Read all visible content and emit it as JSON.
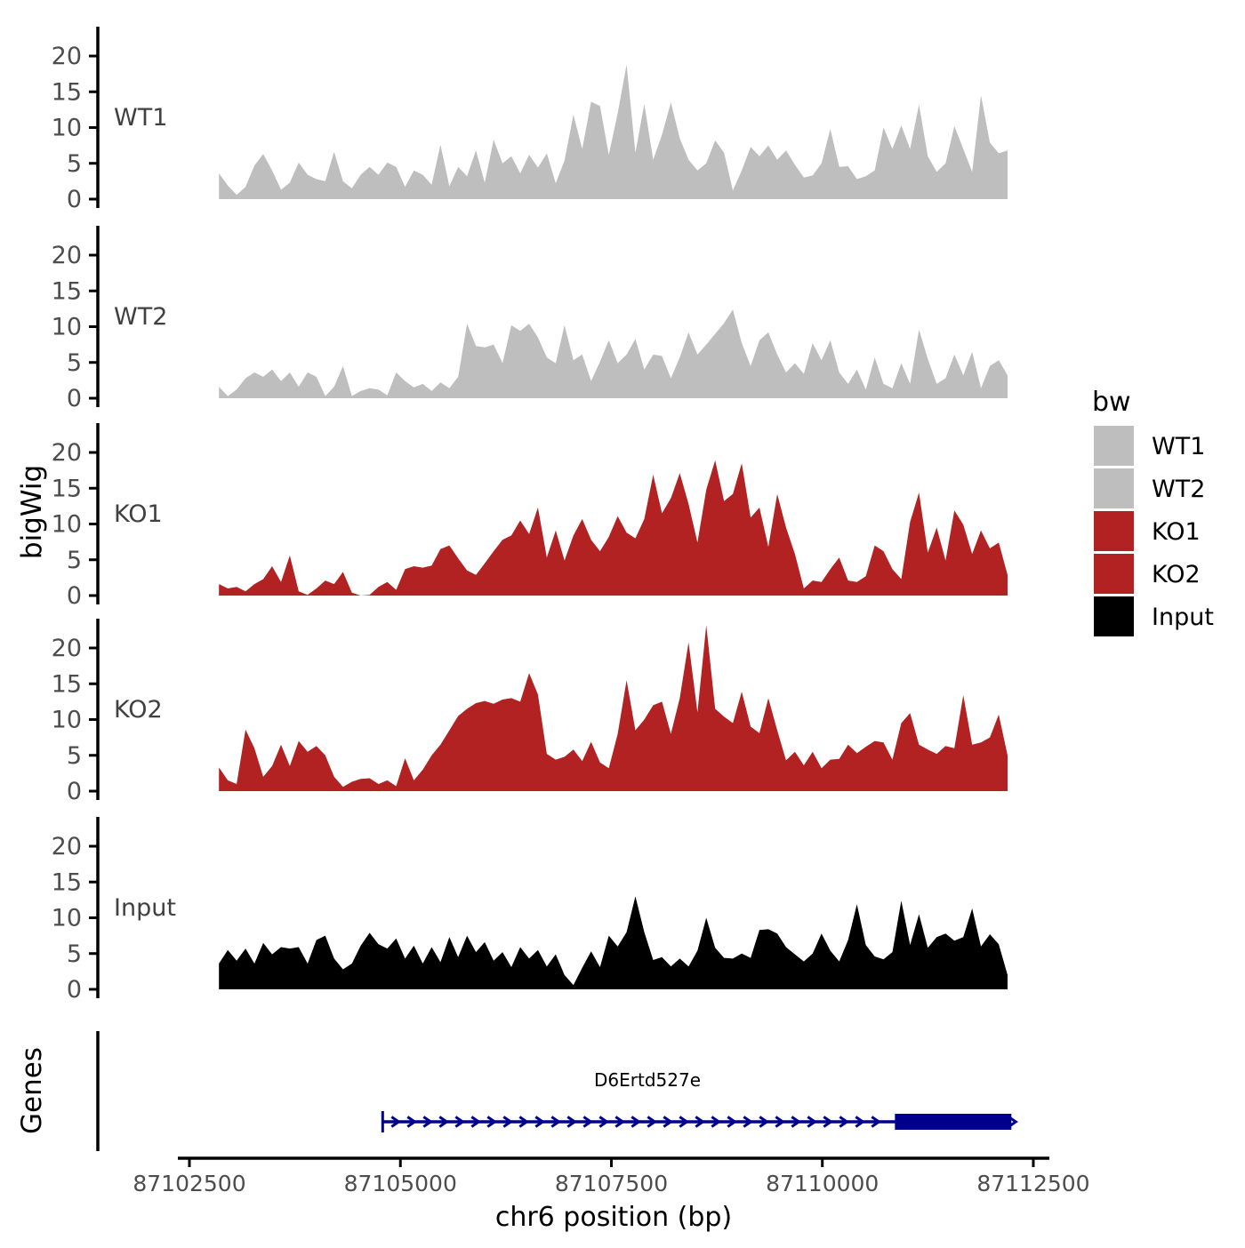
{
  "figure": {
    "y_axis_title": "bigWig",
    "genes_axis_title": "Genes",
    "x_axis_title": "chr6 position (bp)",
    "gene_label": "D6Ertd527e",
    "background": "#FFFFFF",
    "axis_color": "#000000",
    "tick_text_color": "#4D4D4D"
  },
  "legend": {
    "title": "bw",
    "entries": [
      {
        "label": "WT1",
        "color": "#BEBEBE"
      },
      {
        "label": "WT2",
        "color": "#BEBEBE"
      },
      {
        "label": "KO1",
        "color": "#B22222"
      },
      {
        "label": "KO2",
        "color": "#B22222"
      },
      {
        "label": "Input",
        "color": "#000000"
      }
    ]
  },
  "chart_data": {
    "type": "area",
    "title": "",
    "xlabel": "chr6 position (bp)",
    "ylabel": "bigWig",
    "chrom": "chr6",
    "x_range_bp": [
      87102363,
      87112690
    ],
    "x_ticks": [
      87102500,
      87105000,
      87107500,
      87110000,
      87112500
    ],
    "y_ticks": [
      0,
      5,
      10,
      15,
      20
    ],
    "y_range": [
      -1.2,
      24.1
    ],
    "grid": false,
    "legend_position": "right",
    "x_start_bp": 87102850,
    "x_step_bp": 105,
    "series": [
      {
        "name": "WT1",
        "color": "#BEBEBE",
        "values": [
          3.6,
          1.9,
          0.6,
          1.7,
          4.7,
          6.3,
          4.0,
          1.3,
          2.3,
          5.1,
          3.4,
          2.8,
          2.5,
          6.6,
          2.5,
          1.5,
          3.4,
          4.5,
          3.4,
          5.1,
          4.5,
          1.7,
          4.0,
          3.4,
          2.0,
          7.6,
          1.8,
          4.5,
          3.2,
          6.8,
          2.3,
          8.3,
          5.0,
          6.0,
          3.6,
          6.2,
          4.4,
          6.4,
          2.2,
          5.4,
          11.8,
          7.0,
          13.6,
          13.0,
          6.2,
          12.0,
          18.8,
          6.5,
          13.3,
          5.5,
          9.0,
          13.5,
          8.5,
          5.5,
          4.0,
          5.0,
          8.2,
          6.5,
          1.2,
          4.0,
          7.3,
          6.0,
          7.5,
          5.5,
          6.8,
          4.8,
          3.0,
          3.3,
          5.0,
          9.8,
          4.5,
          4.6,
          2.8,
          3.2,
          4.0,
          10.0,
          7.0,
          10.3,
          7.0,
          13.2,
          6.0,
          3.8,
          5.0,
          10.2,
          7.0,
          3.8,
          14.5,
          7.9,
          6.4,
          6.8
        ]
      },
      {
        "name": "WT2",
        "color": "#BEBEBE",
        "values": [
          1.6,
          0.3,
          1.2,
          2.8,
          3.6,
          3.0,
          4.0,
          2.4,
          3.6,
          1.6,
          3.6,
          3.0,
          0.3,
          1.6,
          4.5,
          0.3,
          1.0,
          1.4,
          1.2,
          0.4,
          3.6,
          2.4,
          1.5,
          2.0,
          1.0,
          2.2,
          1.4,
          3.0,
          10.4,
          7.3,
          7.1,
          7.5,
          4.9,
          10.2,
          9.4,
          10.4,
          8.5,
          5.7,
          4.9,
          10.2,
          5.3,
          6.1,
          2.4,
          5.1,
          8.1,
          4.9,
          6.1,
          8.3,
          4.0,
          6.1,
          5.9,
          2.8,
          5.7,
          9.2,
          6.1,
          7.5,
          9.0,
          10.5,
          12.4,
          7.7,
          4.5,
          8.1,
          9.2,
          6.1,
          3.6,
          4.9,
          3.4,
          7.7,
          5.3,
          8.1,
          3.6,
          2.0,
          4.0,
          1.2,
          5.7,
          2.0,
          1.4,
          4.9,
          2.0,
          9.6,
          5.5,
          2.0,
          2.8,
          6.1,
          3.2,
          6.5,
          1.4,
          4.5,
          5.3,
          3.2
        ]
      },
      {
        "name": "KO1",
        "color": "#B22222",
        "values": [
          1.6,
          1.0,
          1.2,
          0.6,
          1.6,
          2.3,
          4.1,
          1.9,
          5.6,
          0.6,
          0.1,
          1.0,
          2.1,
          1.6,
          3.3,
          0.4,
          0.0,
          0.1,
          1.2,
          1.9,
          0.8,
          3.7,
          4.1,
          3.9,
          4.2,
          6.5,
          7.0,
          5.2,
          3.5,
          2.9,
          4.5,
          6.2,
          7.8,
          8.4,
          10.5,
          8.6,
          12.3,
          5.3,
          9.1,
          4.9,
          8.4,
          10.7,
          7.8,
          6.2,
          8.2,
          11.1,
          8.8,
          8.0,
          10.7,
          16.9,
          11.5,
          13.6,
          17.1,
          12.8,
          7.4,
          14.8,
          18.9,
          13.2,
          14.2,
          18.5,
          10.9,
          12.3,
          6.8,
          14.2,
          9.5,
          5.8,
          1.0,
          2.1,
          1.9,
          3.7,
          5.3,
          2.1,
          1.9,
          2.7,
          7.0,
          6.2,
          3.7,
          2.3,
          10.3,
          14.4,
          6.0,
          9.5,
          4.9,
          11.9,
          9.9,
          5.8,
          9.1,
          6.6,
          7.4,
          2.9
        ]
      },
      {
        "name": "KO2",
        "color": "#B22222",
        "values": [
          3.3,
          1.5,
          1.0,
          8.6,
          6.0,
          2.0,
          3.5,
          6.5,
          3.5,
          7.0,
          5.5,
          6.3,
          5.0,
          2.0,
          0.6,
          1.3,
          1.7,
          1.8,
          1.0,
          1.5,
          0.7,
          4.6,
          1.5,
          3.0,
          5.0,
          6.5,
          8.5,
          10.5,
          11.5,
          12.3,
          12.6,
          12.2,
          12.8,
          13.0,
          12.5,
          16.5,
          13.5,
          5.2,
          4.4,
          4.8,
          5.8,
          4.2,
          6.9,
          4.0,
          3.2,
          8.0,
          15.5,
          8.5,
          10.0,
          12.0,
          12.5,
          8.0,
          13.0,
          20.8,
          11.0,
          23.2,
          11.5,
          10.4,
          9.5,
          13.9,
          9.0,
          8.1,
          13.0,
          8.5,
          4.3,
          5.5,
          3.6,
          5.5,
          3.2,
          4.4,
          4.5,
          6.5,
          5.3,
          6.2,
          7.0,
          6.8,
          4.4,
          9.5,
          10.9,
          6.5,
          5.8,
          5.2,
          6.3,
          6.0,
          13.4,
          6.5,
          6.8,
          7.5,
          10.7,
          5.0
        ]
      },
      {
        "name": "Input",
        "color": "#000000",
        "values": [
          3.6,
          5.5,
          4.0,
          5.7,
          3.6,
          6.5,
          4.9,
          5.9,
          5.7,
          5.9,
          3.6,
          6.9,
          7.5,
          4.3,
          2.8,
          3.6,
          6.1,
          7.9,
          6.3,
          5.7,
          7.1,
          4.3,
          6.1,
          3.6,
          5.9,
          3.8,
          7.3,
          4.5,
          7.5,
          5.2,
          6.6,
          4.0,
          5.2,
          3.1,
          5.9,
          4.3,
          5.5,
          3.2,
          4.9,
          2.0,
          0.6,
          3.0,
          5.3,
          3.1,
          7.5,
          6.0,
          8.0,
          13.0,
          8.0,
          4.1,
          4.5,
          3.2,
          4.3,
          3.2,
          5.4,
          10.0,
          5.8,
          4.4,
          4.3,
          5.0,
          4.4,
          8.3,
          8.4,
          7.8,
          5.9,
          4.9,
          3.9,
          5.0,
          7.8,
          5.4,
          3.9,
          6.9,
          11.9,
          6.2,
          4.6,
          4.2,
          5.2,
          12.4,
          6.2,
          10.5,
          5.8,
          7.3,
          7.8,
          6.8,
          7.3,
          11.3,
          6.0,
          7.7,
          6.3,
          2.0
        ]
      }
    ],
    "gene_track": {
      "name": "D6Ertd527e",
      "strand": "+",
      "color": "#00008B",
      "line_start_bp": 87104790,
      "thick_start_bp": 87110860,
      "end_bp": 87112240
    }
  }
}
